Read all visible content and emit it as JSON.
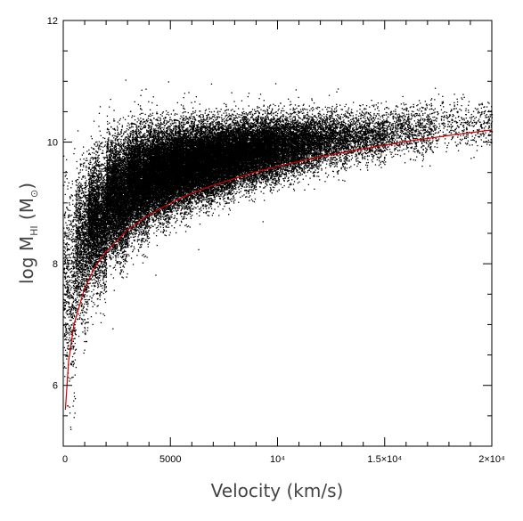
{
  "chart_data": {
    "type": "scatter",
    "title": "",
    "xlabel": "Velocity (km/s)",
    "ylabel": {
      "prefix": "log M",
      "subscript": "HI",
      "unit_open": " (M",
      "unit_symbol": "⊙",
      "unit_close": ")"
    },
    "xlim": [
      0,
      20000
    ],
    "ylim": [
      5,
      12
    ],
    "x_ticks": [
      {
        "value": 0,
        "label": "0"
      },
      {
        "value": 5000,
        "label": "5000"
      },
      {
        "value": 10000,
        "label": "10⁴"
      },
      {
        "value": 15000,
        "label": "1.5×10⁴"
      },
      {
        "value": 20000,
        "label": "2×10⁴"
      }
    ],
    "y_ticks": [
      {
        "value": 6,
        "label": "6"
      },
      {
        "value": 8,
        "label": "8"
      },
      {
        "value": 10,
        "label": "10"
      },
      {
        "value": 12,
        "label": "12"
      }
    ],
    "grid": false,
    "series": [
      {
        "type": "scatter",
        "color": "#000000",
        "density_profile": [
          {
            "x": 300,
            "y_mean": 7.6,
            "y_spread": 0.8,
            "weight": 2
          },
          {
            "x": 800,
            "y_mean": 8.3,
            "y_spread": 0.6,
            "weight": 4
          },
          {
            "x": 1500,
            "y_mean": 8.7,
            "y_spread": 0.5,
            "weight": 7
          },
          {
            "x": 2500,
            "y_mean": 9.1,
            "y_spread": 0.45,
            "weight": 9
          },
          {
            "x": 3500,
            "y_mean": 9.35,
            "y_spread": 0.4,
            "weight": 10
          },
          {
            "x": 4500,
            "y_mean": 9.5,
            "y_spread": 0.35,
            "weight": 10
          },
          {
            "x": 5500,
            "y_mean": 9.6,
            "y_spread": 0.32,
            "weight": 10
          },
          {
            "x": 6500,
            "y_mean": 9.68,
            "y_spread": 0.3,
            "weight": 9
          },
          {
            "x": 7500,
            "y_mean": 9.75,
            "y_spread": 0.28,
            "weight": 8
          },
          {
            "x": 8500,
            "y_mean": 9.83,
            "y_spread": 0.26,
            "weight": 7
          },
          {
            "x": 9500,
            "y_mean": 9.9,
            "y_spread": 0.25,
            "weight": 6
          },
          {
            "x": 10500,
            "y_mean": 9.95,
            "y_spread": 0.24,
            "weight": 4
          },
          {
            "x": 11500,
            "y_mean": 10.0,
            "y_spread": 0.23,
            "weight": 3
          },
          {
            "x": 12500,
            "y_mean": 10.05,
            "y_spread": 0.22,
            "weight": 2
          },
          {
            "x": 14000,
            "y_mean": 10.1,
            "y_spread": 0.2,
            "weight": 1.3
          },
          {
            "x": 16000,
            "y_mean": 10.2,
            "y_spread": 0.2,
            "weight": 0.7
          },
          {
            "x": 18500,
            "y_mean": 10.3,
            "y_spread": 0.2,
            "weight": 0.3
          }
        ]
      },
      {
        "type": "line",
        "color": "#cc0000",
        "x": [
          100,
          250,
          500,
          1000,
          1500,
          2000,
          3000,
          4000,
          5000,
          6000,
          7000,
          8000,
          9000,
          10000,
          12000,
          14000,
          16000,
          18000,
          20000
        ],
        "y": [
          5.6,
          6.4,
          7.0,
          7.6,
          7.96,
          8.2,
          8.56,
          8.8,
          9.0,
          9.16,
          9.29,
          9.4,
          9.51,
          9.6,
          9.76,
          9.89,
          10.01,
          10.11,
          10.2
        ]
      }
    ]
  }
}
